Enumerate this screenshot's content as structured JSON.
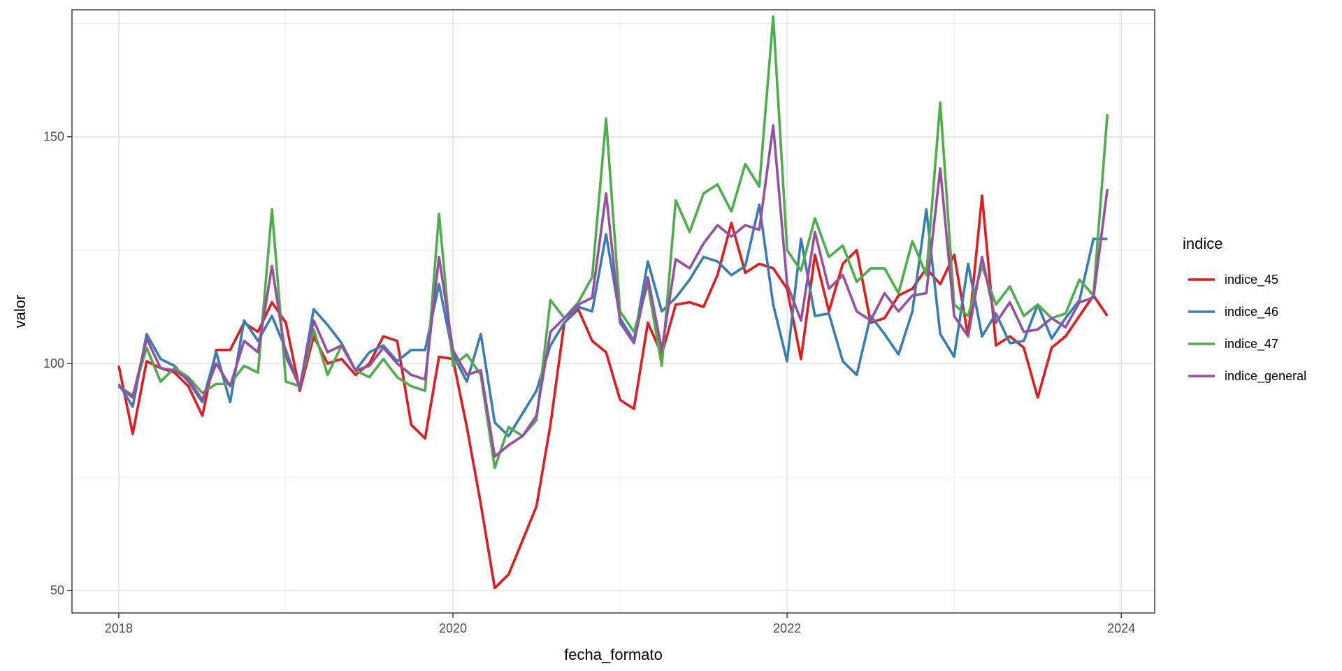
{
  "chart_data": {
    "type": "line",
    "xlabel": "fecha_formato",
    "ylabel": "valor",
    "x_ticks": [
      "2018",
      "2020",
      "2022",
      "2024"
    ],
    "y_ticks": [
      "50",
      "100",
      "150"
    ],
    "xlim": [
      2017.72,
      2024.2
    ],
    "ylim": [
      45,
      178
    ],
    "grid": true,
    "legend": {
      "title": "indice",
      "position": "right"
    },
    "x": [
      "2018-01",
      "2018-02",
      "2018-03",
      "2018-04",
      "2018-05",
      "2018-06",
      "2018-07",
      "2018-08",
      "2018-09",
      "2018-10",
      "2018-11",
      "2018-12",
      "2019-01",
      "2019-02",
      "2019-03",
      "2019-04",
      "2019-05",
      "2019-06",
      "2019-07",
      "2019-08",
      "2019-09",
      "2019-10",
      "2019-11",
      "2019-12",
      "2020-01",
      "2020-02",
      "2020-03",
      "2020-04",
      "2020-05",
      "2020-06",
      "2020-07",
      "2020-08",
      "2020-09",
      "2020-10",
      "2020-11",
      "2020-12",
      "2021-01",
      "2021-02",
      "2021-03",
      "2021-04",
      "2021-05",
      "2021-06",
      "2021-07",
      "2021-08",
      "2021-09",
      "2021-10",
      "2021-11",
      "2021-12",
      "2022-01",
      "2022-02",
      "2022-03",
      "2022-04",
      "2022-05",
      "2022-06",
      "2022-07",
      "2022-08",
      "2022-09",
      "2022-10",
      "2022-11",
      "2022-12",
      "2023-01",
      "2023-02",
      "2023-03",
      "2023-04",
      "2023-05",
      "2023-06",
      "2023-07",
      "2023-08",
      "2023-09",
      "2023-10",
      "2023-11",
      "2023-12"
    ],
    "series": [
      {
        "name": "indice_45",
        "color": "#e41a1c",
        "values": [
          99.5,
          84.5,
          100.5,
          99,
          98,
          95,
          88.5,
          103,
          103,
          109,
          107,
          113.5,
          109,
          94,
          106,
          100,
          101,
          97.5,
          100,
          106,
          105,
          86.5,
          83.5,
          101.5,
          101,
          86,
          69,
          50.5,
          53.5,
          61,
          68.5,
          86.5,
          109,
          112,
          105,
          102.5,
          92,
          90,
          109,
          102,
          113,
          113.5,
          112.5,
          119.5,
          131,
          120,
          122,
          121,
          116.5,
          101,
          124,
          111.5,
          122,
          125,
          109,
          110,
          115,
          116.5,
          121,
          117.5,
          124,
          106,
          137,
          104,
          106,
          103.5,
          92.5,
          103.5,
          106,
          110.5,
          115,
          110.5
        ]
      },
      {
        "name": "indice_46",
        "color": "#377eb8",
        "values": [
          95.5,
          90.5,
          106.5,
          101,
          99.5,
          96,
          91.5,
          102.5,
          91.5,
          109.5,
          105,
          110.5,
          103,
          94.5,
          112,
          108.5,
          104.5,
          98.5,
          102.5,
          104,
          100.5,
          103,
          103,
          117.5,
          102,
          96,
          106.5,
          87,
          84,
          89,
          94,
          104,
          109,
          112.5,
          111.5,
          128.5,
          110,
          105,
          122.5,
          111.5,
          114.5,
          118.5,
          123.5,
          122.5,
          119.5,
          121.5,
          135,
          113,
          100.5,
          127.5,
          110.5,
          111,
          100.5,
          97.5,
          110.5,
          106.5,
          102,
          111.5,
          134,
          106.5,
          101.5,
          122,
          106,
          111,
          104.5,
          105,
          113,
          105.5,
          110,
          114,
          127.5,
          127.5
        ]
      },
      {
        "name": "indice_47",
        "color": "#4daf4a",
        "values": [
          95,
          93,
          103.5,
          96,
          99,
          97,
          93.5,
          95.5,
          95.5,
          99.5,
          98,
          134,
          96,
          95,
          107.5,
          97.5,
          104,
          98.5,
          97,
          101,
          97,
          95,
          94,
          133,
          99.5,
          102,
          97.5,
          77,
          86,
          84,
          87.5,
          114,
          110,
          113.5,
          119,
          154,
          111.5,
          107,
          117.5,
          99.5,
          136,
          129,
          137.5,
          139.5,
          133.5,
          144,
          139,
          176.5,
          125,
          120.5,
          132,
          123.5,
          126,
          118,
          121,
          121,
          115.5,
          127,
          119.5,
          157.5,
          113,
          110.5,
          121.5,
          113,
          117,
          110.5,
          113,
          110,
          111,
          118.5,
          115,
          155
        ]
      },
      {
        "name": "indice_general",
        "color": "#984ea3",
        "values": [
          95,
          92.5,
          105.5,
          99,
          98.5,
          96.5,
          92,
          100,
          95,
          105,
          102.5,
          121.5,
          101.5,
          95,
          109.5,
          102.5,
          104,
          98.5,
          99.5,
          103.5,
          100,
          97.5,
          96.5,
          123.5,
          103,
          97.5,
          98.5,
          79.5,
          82,
          84,
          88.5,
          107,
          110,
          113,
          114.5,
          137.5,
          109,
          104.5,
          119,
          103,
          123,
          121,
          126.5,
          130.5,
          128,
          130.5,
          129.5,
          152.5,
          117.5,
          109.5,
          129,
          116.5,
          119.5,
          111.5,
          109.5,
          115.5,
          111.5,
          115,
          115.5,
          143,
          110.5,
          106,
          123.5,
          109,
          113.5,
          107,
          107.5,
          110,
          108,
          113.5,
          114.5,
          138.5
        ]
      }
    ]
  }
}
